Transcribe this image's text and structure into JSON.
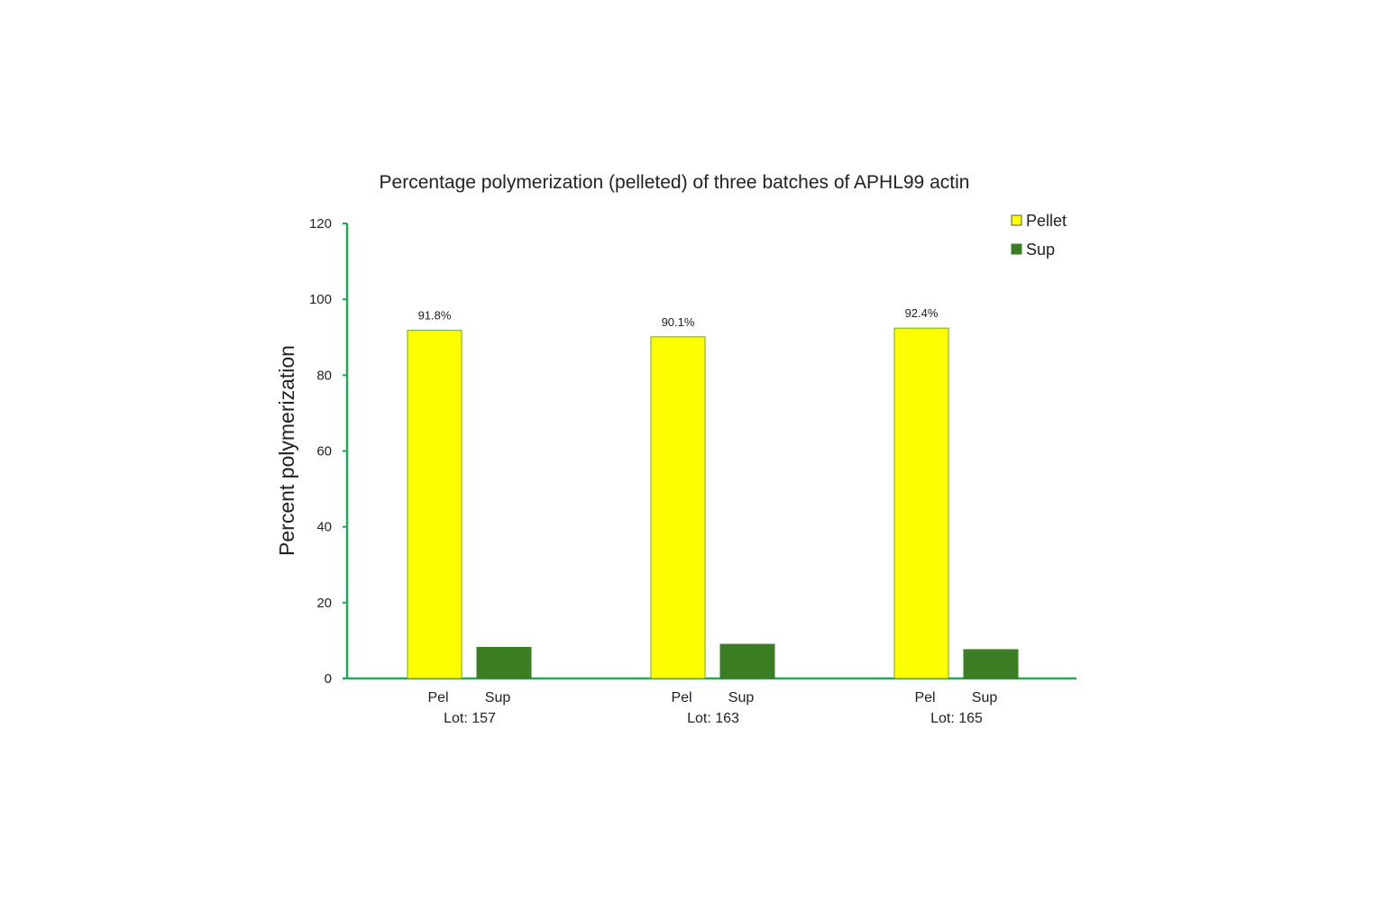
{
  "chart_data": {
    "type": "bar",
    "title": "Percentage polymerization (pelleted) of three batches of APHL99 actin",
    "xlabel": "",
    "ylabel": "Percent polymerization",
    "ylim": [
      0,
      120
    ],
    "yticks": [
      0,
      20,
      40,
      60,
      80,
      100,
      120
    ],
    "grid": false,
    "legend_position": "top-right",
    "categories": [
      "Lot: 157",
      "Lot: 163",
      "Lot: 165"
    ],
    "series": [
      {
        "name": "Pellet",
        "sub_label": "Pel",
        "color": "#FFFF00",
        "border": "#6AAA2A",
        "values": [
          91.8,
          90.1,
          92.4
        ],
        "data_labels": [
          "91.8%",
          "90.1%",
          "92.4%"
        ]
      },
      {
        "name": "Sup",
        "sub_label": "Sup",
        "color": "#3A7D23",
        "border": "#3A7D23",
        "values": [
          8.2,
          9.0,
          7.6
        ],
        "data_labels": []
      }
    ],
    "axis_color": "#1EAA55"
  }
}
